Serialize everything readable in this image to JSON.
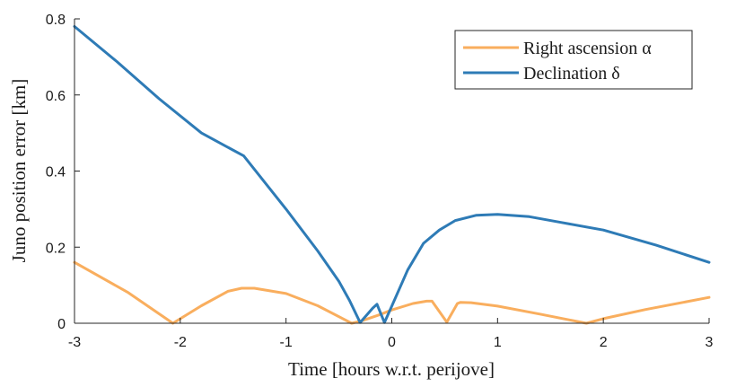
{
  "chart_data": {
    "type": "line",
    "title": "",
    "xlabel": "Time [hours w.r.t. perijove]",
    "ylabel": "Juno position error [km]",
    "xlim": [
      -3,
      3
    ],
    "ylim": [
      0,
      0.8
    ],
    "xticks": [
      -3,
      -2,
      -1,
      0,
      1,
      2,
      3
    ],
    "xtick_labels": [
      "-3",
      "-2",
      "-1",
      "0",
      "1",
      "2",
      "3"
    ],
    "yticks": [
      0,
      0.2,
      0.4,
      0.6,
      0.8
    ],
    "ytick_labels": [
      "0",
      "0.2",
      "0.4",
      "0.6",
      "0.8"
    ],
    "grid": false,
    "legend_position": "top-right",
    "series": [
      {
        "name": "Right ascension α",
        "color": "#F9AE5E",
        "points": [
          [
            -3.0,
            0.16
          ],
          [
            -2.5,
            0.082
          ],
          [
            -2.07,
            0.0
          ],
          [
            -1.8,
            0.046
          ],
          [
            -1.55,
            0.084
          ],
          [
            -1.42,
            0.092
          ],
          [
            -1.3,
            0.092
          ],
          [
            -1.0,
            0.078
          ],
          [
            -0.7,
            0.046
          ],
          [
            -0.38,
            0.0
          ],
          [
            -0.3,
            0.005
          ],
          [
            -0.12,
            0.022
          ],
          [
            0.0,
            0.035
          ],
          [
            0.2,
            0.052
          ],
          [
            0.33,
            0.058
          ],
          [
            0.38,
            0.058
          ],
          [
            0.52,
            0.003
          ],
          [
            0.62,
            0.052
          ],
          [
            0.65,
            0.055
          ],
          [
            0.75,
            0.054
          ],
          [
            1.0,
            0.045
          ],
          [
            1.4,
            0.024
          ],
          [
            1.84,
            0.0
          ],
          [
            2.0,
            0.012
          ],
          [
            2.4,
            0.036
          ],
          [
            3.0,
            0.068
          ]
        ]
      },
      {
        "name": "Declination δ",
        "color": "#2E7BB6",
        "points": [
          [
            -3.0,
            0.78
          ],
          [
            -2.6,
            0.688
          ],
          [
            -2.2,
            0.59
          ],
          [
            -1.8,
            0.5
          ],
          [
            -1.4,
            0.44
          ],
          [
            -1.0,
            0.3
          ],
          [
            -0.7,
            0.19
          ],
          [
            -0.5,
            0.11
          ],
          [
            -0.4,
            0.06
          ],
          [
            -0.3,
            0.002
          ],
          [
            -0.18,
            0.04
          ],
          [
            -0.14,
            0.05
          ],
          [
            -0.07,
            0.002
          ],
          [
            0.0,
            0.045
          ],
          [
            0.15,
            0.14
          ],
          [
            0.3,
            0.21
          ],
          [
            0.45,
            0.245
          ],
          [
            0.6,
            0.27
          ],
          [
            0.8,
            0.284
          ],
          [
            1.0,
            0.286
          ],
          [
            1.3,
            0.28
          ],
          [
            1.6,
            0.265
          ],
          [
            2.0,
            0.245
          ],
          [
            2.5,
            0.205
          ],
          [
            3.0,
            0.16
          ]
        ]
      }
    ]
  }
}
